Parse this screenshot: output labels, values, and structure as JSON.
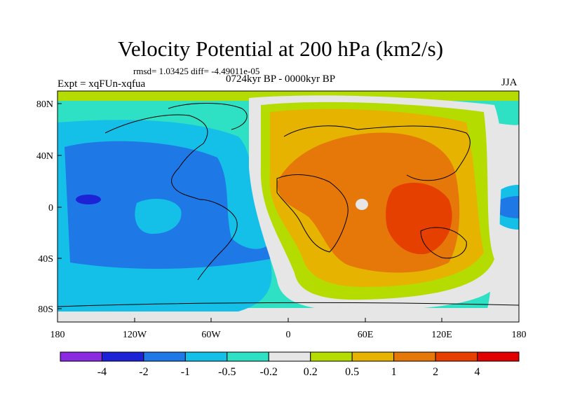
{
  "figure": {
    "title": "Velocity Potential at 200 hPa (km2/s)",
    "stats": "rmsd= 1.03425 diff= -4.49011e-05",
    "experiment": "Expt = xqFUn-xqfua",
    "period": "0724kyr BP - 0000kyr BP",
    "season": "JJA"
  },
  "axes": {
    "lat_ticks": [
      "80N",
      "40N",
      "0",
      "40S",
      "80S"
    ],
    "lon_ticks": [
      "180",
      "120W",
      "60W",
      "0",
      "60E",
      "120E",
      "180"
    ]
  },
  "colorbar": {
    "colors": [
      "#8a2be2",
      "#1c22d6",
      "#1e78e6",
      "#14c0e8",
      "#2ee0c4",
      "#e6e6e6",
      "#b4dc00",
      "#e6b400",
      "#e6780a",
      "#e64000",
      "#e00000"
    ],
    "labels": [
      "-4",
      "-2",
      "-1",
      "-0.5",
      "-0.2",
      "0.2",
      "0.5",
      "1",
      "2",
      "4"
    ]
  }
}
